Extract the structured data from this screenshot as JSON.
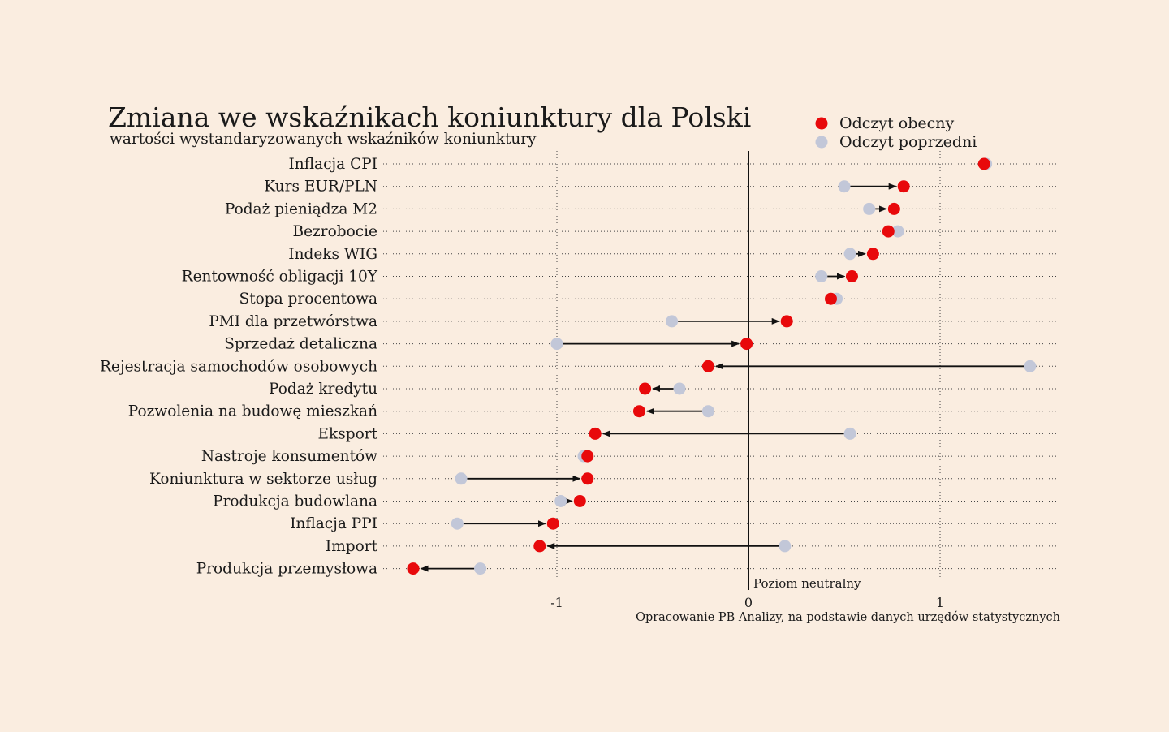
{
  "chart_data": {
    "type": "scatter",
    "title": "Zmiana we wskaźnikach koniunktury dla Polski",
    "subtitle": "wartości wystandaryzowanych wskaźników koniunktury",
    "source": "Opracowanie PB Analizy, na podstawie danych urzędów statystycznych",
    "neutral_label": "Poziom neutralny",
    "xlim": [
      -1.9,
      1.6
    ],
    "x_ticks": [
      {
        "value": -1,
        "label": "-1"
      },
      {
        "value": 0,
        "label": "0"
      },
      {
        "value": 1,
        "label": "1"
      }
    ],
    "grid": "vertical dotted at ticks, horizontal dotted per category",
    "legend": {
      "position": "top-right",
      "items": [
        {
          "name": "Odczyt obecny",
          "color": "#e8090b"
        },
        {
          "name": "Odczyt poprzedni",
          "color": "#c2c7d8"
        }
      ]
    },
    "categories": [
      "Inflacja CPI",
      "Kurs EUR/PLN",
      "Podaż pieniądza M2",
      "Bezrobocie",
      "Indeks WIG",
      "Rentowność obligacji 10Y",
      "Stopa procentowa",
      "PMI dla przetwórstwa",
      "Sprzedaż detaliczna",
      "Rejestracja samochodów osobowych",
      "Podaż kredytu",
      "Pozwolenia na budowę mieszkań",
      "Eksport",
      "Nastroje konsumentów",
      "Koniunktura w sektorze usług",
      "Produkcja budowlana",
      "Inflacja PPI",
      "Import",
      "Produkcja przemysłowa"
    ],
    "series": [
      {
        "name": "Odczyt obecny",
        "values": [
          1.23,
          0.81,
          0.76,
          0.73,
          0.65,
          0.54,
          0.43,
          0.2,
          -0.01,
          -0.21,
          -0.54,
          -0.57,
          -0.8,
          -0.84,
          -0.84,
          -0.88,
          -1.02,
          -1.09,
          -1.75
        ]
      },
      {
        "name": "Odczyt poprzedni",
        "values": [
          1.24,
          0.5,
          0.63,
          0.78,
          0.53,
          0.38,
          0.46,
          -0.4,
          -1.0,
          1.47,
          -0.36,
          -0.21,
          0.53,
          -0.86,
          -1.5,
          -0.98,
          -1.52,
          0.19,
          -1.4
        ]
      }
    ]
  }
}
